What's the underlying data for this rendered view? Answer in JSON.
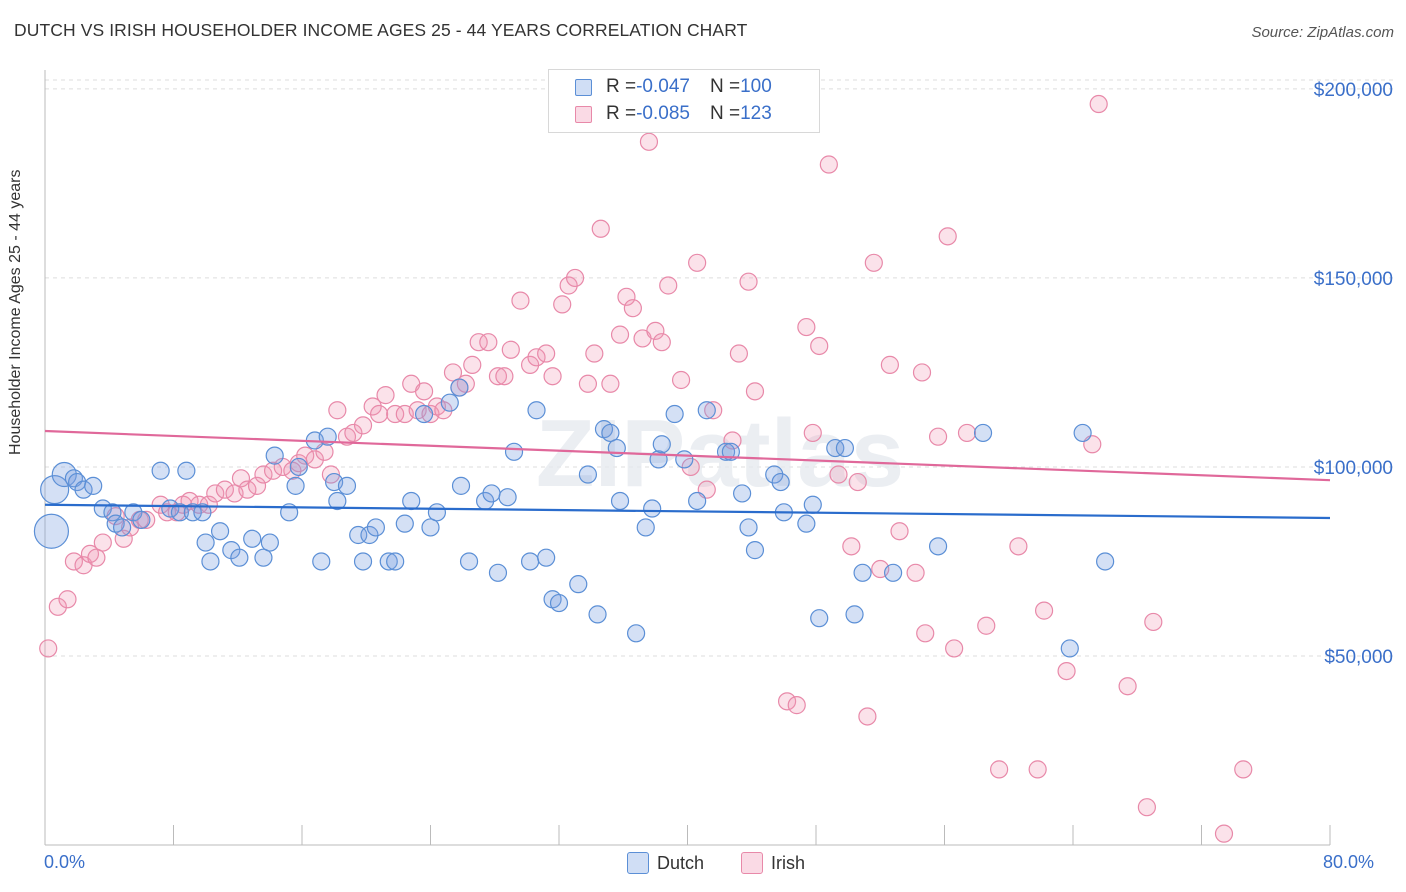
{
  "header": {
    "title": "DUTCH VS IRISH HOUSEHOLDER INCOME AGES 25 - 44 YEARS CORRELATION CHART",
    "source": "Source: ZipAtlas.com"
  },
  "colors": {
    "dutch": "#5b8fd6",
    "dutch_fill": "rgba(120,160,225,0.32)",
    "dutch_line": "#2a6ccc",
    "irish": "#e889a9",
    "irish_fill": "rgba(240,150,180,0.28)",
    "irish_line": "#e0689a",
    "tick_text": "#3a6fc9",
    "grid": "#dddddd"
  },
  "legend": {
    "dutch": {
      "r_label": "R = ",
      "r_value": "-0.047",
      "n_label": "N = ",
      "n_value": "100"
    },
    "irish": {
      "r_label": "R = ",
      "r_value": "-0.085",
      "n_label": "N = ",
      "n_value": "123"
    }
  },
  "bottom_legend": {
    "dutch": "Dutch",
    "irish": "Irish"
  },
  "watermark": "ZIPatlas",
  "chart_data": {
    "type": "scatter",
    "title": "DUTCH VS IRISH HOUSEHOLDER INCOME AGES 25 - 44 YEARS CORRELATION CHART",
    "xlabel": "",
    "ylabel": "Householder Income Ages 25 - 44 years",
    "xlim": [
      0,
      80
    ],
    "ylim": [
      0,
      205000
    ],
    "x_tick_labels": [
      "0.0%",
      "80.0%"
    ],
    "y_ticks": [
      50000,
      100000,
      150000,
      200000
    ],
    "y_tick_labels": [
      "$50,000",
      "$100,000",
      "$150,000",
      "$200,000"
    ],
    "grid": "horizontal dashed",
    "legend_position": "top-center",
    "series": [
      {
        "name": "Dutch",
        "r": -0.047,
        "n": 100,
        "trend": {
          "x": [
            0,
            80
          ],
          "y": [
            90000,
            86500
          ]
        },
        "points": [
          [
            0.6,
            94000,
            4
          ],
          [
            0.4,
            83000,
            5
          ],
          [
            1.2,
            98000,
            3
          ],
          [
            1.8,
            97000,
            2
          ],
          [
            2.0,
            96000,
            2
          ],
          [
            2.4,
            94000,
            2
          ],
          [
            3.0,
            95000,
            2
          ],
          [
            3.6,
            89000,
            2
          ],
          [
            4.2,
            88000,
            2
          ],
          [
            4.4,
            85000,
            2
          ],
          [
            4.8,
            84000,
            2
          ],
          [
            5.5,
            88000,
            2
          ],
          [
            6.0,
            86000,
            2
          ],
          [
            7.2,
            99000,
            2
          ],
          [
            7.8,
            89000,
            2
          ],
          [
            8.4,
            88000,
            2
          ],
          [
            8.8,
            99000,
            2
          ],
          [
            9.2,
            88000,
            2
          ],
          [
            9.8,
            88000,
            2
          ],
          [
            10.0,
            80000,
            2
          ],
          [
            10.3,
            75000,
            2
          ],
          [
            10.9,
            83000,
            2
          ],
          [
            11.6,
            78000,
            2
          ],
          [
            12.1,
            76000,
            2
          ],
          [
            12.9,
            81000,
            2
          ],
          [
            13.6,
            76000,
            2
          ],
          [
            14.0,
            80000,
            2
          ],
          [
            14.3,
            103000,
            2
          ],
          [
            15.2,
            88000,
            2
          ],
          [
            15.6,
            95000,
            2
          ],
          [
            15.8,
            100000,
            2
          ],
          [
            16.8,
            107000,
            2
          ],
          [
            17.2,
            75000,
            2
          ],
          [
            17.6,
            108000,
            2
          ],
          [
            18.0,
            96000,
            2
          ],
          [
            18.2,
            91000,
            2
          ],
          [
            18.8,
            95000,
            2
          ],
          [
            19.5,
            82000,
            2
          ],
          [
            19.8,
            75000,
            2
          ],
          [
            20.2,
            82000,
            2
          ],
          [
            20.6,
            84000,
            2
          ],
          [
            21.4,
            75000,
            2
          ],
          [
            21.8,
            75000,
            2
          ],
          [
            22.4,
            85000,
            2
          ],
          [
            22.8,
            91000,
            2
          ],
          [
            23.6,
            114000,
            2
          ],
          [
            24.0,
            84000,
            2
          ],
          [
            24.4,
            88000,
            2
          ],
          [
            25.2,
            117000,
            2
          ],
          [
            25.8,
            121000,
            2
          ],
          [
            25.9,
            95000,
            2
          ],
          [
            26.4,
            75000,
            2
          ],
          [
            27.4,
            91000,
            2
          ],
          [
            27.8,
            93000,
            2
          ],
          [
            28.2,
            72000,
            2
          ],
          [
            28.8,
            92000,
            2
          ],
          [
            29.2,
            104000,
            2
          ],
          [
            30.2,
            75000,
            2
          ],
          [
            30.6,
            115000,
            2
          ],
          [
            31.2,
            76000,
            2
          ],
          [
            31.6,
            65000,
            2
          ],
          [
            32.0,
            64000,
            2
          ],
          [
            33.2,
            69000,
            2
          ],
          [
            33.8,
            98000,
            2
          ],
          [
            34.4,
            61000,
            2
          ],
          [
            34.8,
            110000,
            2
          ],
          [
            35.2,
            109000,
            2
          ],
          [
            35.6,
            105000,
            2
          ],
          [
            35.8,
            91000,
            2
          ],
          [
            36.8,
            56000,
            2
          ],
          [
            37.4,
            84000,
            2
          ],
          [
            37.8,
            89000,
            2
          ],
          [
            38.2,
            102000,
            2
          ],
          [
            38.4,
            106000,
            2
          ],
          [
            39.2,
            114000,
            2
          ],
          [
            39.8,
            102000,
            2
          ],
          [
            40.6,
            91000,
            2
          ],
          [
            41.2,
            115000,
            2
          ],
          [
            42.4,
            104000,
            2
          ],
          [
            42.7,
            104000,
            2
          ],
          [
            43.4,
            93000,
            2
          ],
          [
            43.8,
            84000,
            2
          ],
          [
            44.2,
            78000,
            2
          ],
          [
            45.4,
            98000,
            2
          ],
          [
            45.8,
            96000,
            2
          ],
          [
            46.0,
            88000,
            2
          ],
          [
            47.4,
            85000,
            2
          ],
          [
            47.8,
            90000,
            2
          ],
          [
            48.2,
            60000,
            2
          ],
          [
            49.2,
            105000,
            2
          ],
          [
            49.8,
            105000,
            2
          ],
          [
            50.4,
            61000,
            2
          ],
          [
            50.9,
            72000,
            2
          ],
          [
            52.8,
            72000,
            2
          ],
          [
            55.6,
            79000,
            2
          ],
          [
            58.4,
            109000,
            2
          ],
          [
            63.8,
            52000,
            2
          ],
          [
            64.6,
            109000,
            2
          ],
          [
            66.0,
            75000,
            2
          ]
        ]
      },
      {
        "name": "Irish",
        "r": -0.085,
        "n": 123,
        "trend": {
          "x": [
            0,
            80
          ],
          "y": [
            109500,
            96500
          ]
        },
        "points": [
          [
            0.2,
            52000,
            2
          ],
          [
            0.8,
            63000,
            2
          ],
          [
            1.4,
            65000,
            2
          ],
          [
            1.8,
            75000,
            2
          ],
          [
            2.4,
            74000,
            2
          ],
          [
            2.8,
            77000,
            2
          ],
          [
            3.2,
            76000,
            2
          ],
          [
            3.6,
            80000,
            2
          ],
          [
            4.4,
            87000,
            2
          ],
          [
            4.9,
            81000,
            2
          ],
          [
            5.3,
            84000,
            2
          ],
          [
            5.9,
            86000,
            2
          ],
          [
            6.3,
            86000,
            2
          ],
          [
            7.2,
            90000,
            2
          ],
          [
            7.6,
            88000,
            2
          ],
          [
            8.2,
            88000,
            2
          ],
          [
            8.6,
            90000,
            2
          ],
          [
            9.0,
            91000,
            2
          ],
          [
            9.6,
            90000,
            2
          ],
          [
            10.2,
            90000,
            2
          ],
          [
            10.6,
            93000,
            2
          ],
          [
            11.2,
            94000,
            2
          ],
          [
            11.8,
            93000,
            2
          ],
          [
            12.2,
            97000,
            2
          ],
          [
            12.6,
            94000,
            2
          ],
          [
            13.2,
            95000,
            2
          ],
          [
            13.6,
            98000,
            2
          ],
          [
            14.2,
            99000,
            2
          ],
          [
            14.8,
            100000,
            2
          ],
          [
            15.4,
            99000,
            2
          ],
          [
            15.8,
            101000,
            2
          ],
          [
            16.2,
            103000,
            2
          ],
          [
            16.8,
            102000,
            2
          ],
          [
            17.4,
            104000,
            2
          ],
          [
            17.8,
            98000,
            2
          ],
          [
            18.2,
            115000,
            2
          ],
          [
            18.8,
            108000,
            2
          ],
          [
            19.2,
            109000,
            2
          ],
          [
            19.8,
            111000,
            2
          ],
          [
            20.4,
            116000,
            2
          ],
          [
            20.8,
            114000,
            2
          ],
          [
            21.2,
            119000,
            2
          ],
          [
            21.8,
            114000,
            2
          ],
          [
            22.4,
            114000,
            2
          ],
          [
            22.8,
            122000,
            2
          ],
          [
            23.2,
            115000,
            2
          ],
          [
            23.6,
            120000,
            2
          ],
          [
            24.0,
            114000,
            2
          ],
          [
            24.4,
            116000,
            2
          ],
          [
            24.8,
            115000,
            2
          ],
          [
            25.4,
            125000,
            2
          ],
          [
            25.8,
            121000,
            2
          ],
          [
            26.2,
            122000,
            2
          ],
          [
            26.6,
            127000,
            2
          ],
          [
            27.0,
            133000,
            2
          ],
          [
            27.6,
            133000,
            2
          ],
          [
            28.2,
            124000,
            2
          ],
          [
            28.6,
            124000,
            2
          ],
          [
            29.0,
            131000,
            2
          ],
          [
            29.6,
            144000,
            2
          ],
          [
            30.2,
            127000,
            2
          ],
          [
            30.6,
            129000,
            2
          ],
          [
            31.2,
            130000,
            2
          ],
          [
            31.6,
            124000,
            2
          ],
          [
            32.2,
            143000,
            2
          ],
          [
            32.6,
            148000,
            2
          ],
          [
            33.0,
            150000,
            2
          ],
          [
            33.8,
            122000,
            2
          ],
          [
            34.2,
            130000,
            2
          ],
          [
            34.6,
            163000,
            2
          ],
          [
            35.2,
            122000,
            2
          ],
          [
            35.8,
            135000,
            2
          ],
          [
            36.2,
            145000,
            2
          ],
          [
            36.6,
            142000,
            2
          ],
          [
            37.2,
            134000,
            2
          ],
          [
            37.6,
            186000,
            2
          ],
          [
            38.0,
            136000,
            2
          ],
          [
            38.4,
            133000,
            2
          ],
          [
            38.8,
            148000,
            2
          ],
          [
            39.6,
            123000,
            2
          ],
          [
            40.2,
            100000,
            2
          ],
          [
            40.6,
            154000,
            2
          ],
          [
            41.2,
            94000,
            2
          ],
          [
            41.6,
            115000,
            2
          ],
          [
            42.4,
            192000,
            2
          ],
          [
            42.8,
            107000,
            2
          ],
          [
            43.2,
            130000,
            2
          ],
          [
            43.8,
            149000,
            2
          ],
          [
            44.2,
            120000,
            2
          ],
          [
            46.2,
            38000,
            2
          ],
          [
            46.8,
            37000,
            2
          ],
          [
            47.4,
            137000,
            2
          ],
          [
            47.8,
            109000,
            2
          ],
          [
            48.2,
            132000,
            2
          ],
          [
            48.8,
            180000,
            2
          ],
          [
            49.4,
            98000,
            2
          ],
          [
            50.2,
            79000,
            2
          ],
          [
            50.6,
            96000,
            2
          ],
          [
            51.2,
            34000,
            2
          ],
          [
            51.6,
            154000,
            2
          ],
          [
            52.0,
            73000,
            2
          ],
          [
            52.6,
            127000,
            2
          ],
          [
            53.2,
            83000,
            2
          ],
          [
            54.2,
            72000,
            2
          ],
          [
            54.6,
            125000,
            2
          ],
          [
            54.8,
            56000,
            2
          ],
          [
            55.6,
            108000,
            2
          ],
          [
            56.2,
            161000,
            2
          ],
          [
            56.6,
            52000,
            2
          ],
          [
            57.4,
            109000,
            2
          ],
          [
            58.6,
            58000,
            2
          ],
          [
            59.4,
            20000,
            2
          ],
          [
            60.6,
            79000,
            2
          ],
          [
            61.8,
            20000,
            2
          ],
          [
            62.2,
            62000,
            2
          ],
          [
            63.6,
            46000,
            2
          ],
          [
            65.2,
            106000,
            2
          ],
          [
            65.6,
            196000,
            2
          ],
          [
            67.4,
            42000,
            2
          ],
          [
            68.6,
            10000,
            2
          ],
          [
            69.0,
            59000,
            2
          ],
          [
            73.4,
            3000,
            2
          ],
          [
            74.6,
            20000,
            2
          ]
        ]
      }
    ]
  }
}
